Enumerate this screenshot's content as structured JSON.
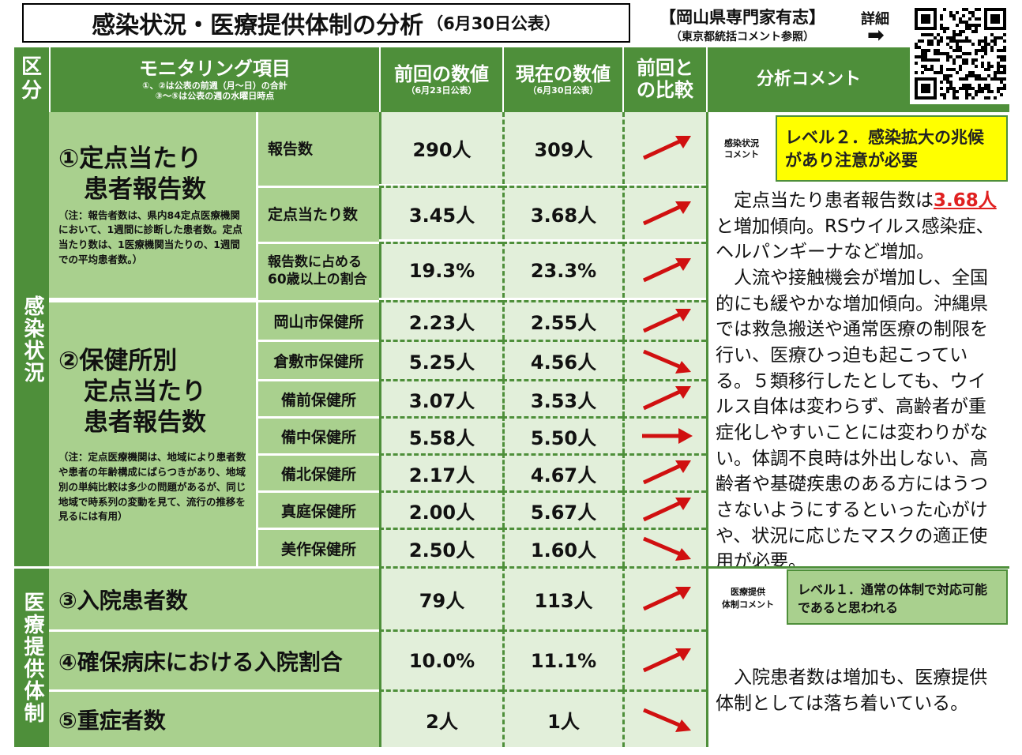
{
  "title": {
    "main": "感染状況・医療提供体制の分析",
    "date": "（6月30日公表）"
  },
  "expert": {
    "line1": "【岡山県専門家有志】",
    "line2": "（東京都統括コメント参照）",
    "detail": "詳細",
    "arrow": "➡"
  },
  "header": {
    "category_1": "区",
    "category_2": "分",
    "item": "モニタリング項目",
    "item_note1": "①、②は公表の前週（月～日）の合計",
    "item_note2": "③～⑤は公表の週の水曜日時点",
    "prev": "前回の数値",
    "prev_date": "（6月23日公表）",
    "curr": "現在の数値",
    "curr_date": "（6月30日公表）",
    "compare_1": "前回と",
    "compare_2": "の比較",
    "comment": "分析コメント"
  },
  "sections": {
    "infection": "感染状況",
    "medical": "医療提供体制"
  },
  "item1": {
    "title_1": "①定点当たり",
    "title_2": "患者報告数",
    "note": "（注：報告者数は、県内84定点医療機関において、1週間に診断した患者数。定点当たり数は、1医療機関当たりの、1週間での平均患者数。）"
  },
  "item2": {
    "title_1": "②保健所別",
    "title_2": "定点当たり",
    "title_3": "患者報告数",
    "note": "（注：定点医療機関は、地域により患者数や患者の年齢構成にばらつきがあり、地域別の単純比較は多少の問題があるが、同じ地域で時系列の変動を見て、流行の推移を見るには有用）"
  },
  "rows": [
    {
      "label": "報告数",
      "prev": "290人",
      "curr": "309人",
      "trend": "up"
    },
    {
      "label": "定点当たり数",
      "prev": "3.45人",
      "curr": "3.68人",
      "trend": "up"
    },
    {
      "label": "報告数に占める60歳以上の割合",
      "label_1": "報告数に占める",
      "label_2": "60歳以上の割合",
      "prev": "19.3%",
      "curr": "23.3%",
      "trend": "up"
    },
    {
      "label": "岡山市保健所",
      "prev": "2.23人",
      "curr": "2.55人",
      "trend": "up"
    },
    {
      "label": "倉敷市保健所",
      "prev": "5.25人",
      "curr": "4.56人",
      "trend": "down"
    },
    {
      "label": "備前保健所",
      "prev": "3.07人",
      "curr": "3.53人",
      "trend": "up"
    },
    {
      "label": "備中保健所",
      "prev": "5.58人",
      "curr": "5.50人",
      "trend": "flat"
    },
    {
      "label": "備北保健所",
      "prev": "2.17人",
      "curr": "4.67人",
      "trend": "up"
    },
    {
      "label": "真庭保健所",
      "prev": "2.00人",
      "curr": "5.67人",
      "trend": "up"
    },
    {
      "label": "美作保健所",
      "prev": "2.50人",
      "curr": "1.60人",
      "trend": "down"
    },
    {
      "label": "③入院患者数",
      "prev": "79人",
      "curr": "113人",
      "trend": "up"
    },
    {
      "label": "④確保病床における入院割合",
      "prev": "10.0%",
      "curr": "11.1%",
      "trend": "up"
    },
    {
      "label": "⑤重症者数",
      "prev": "2人",
      "curr": "1人",
      "trend": "down"
    }
  ],
  "infection_comment": {
    "tag_1": "感染状況",
    "tag_2": "コメント",
    "level": "レベル２．感染拡大の兆候があり注意が必要",
    "text_pre": "　定点当たり患者報告数は",
    "text_highlight": "3.68人",
    "text_post": "と増加傾向。RSウイルス感染症、ヘルパンギーナなど増加。\n　人流や接触機会が増加し、全国的にも緩やかな増加傾向。沖縄県では救急搬送や通常医療の制限を行い、医療ひっ迫も起こっている。５類移行したとしても、ウイルス自体は変わらず、高齢者が重症化しやすいことには変わりがない。体調不良時は外出しない、高齢者や基礎疾患のある方にはうつさないようにするといった心がけや、状況に応じたマスクの適正使用が必要。"
  },
  "medical_comment": {
    "tag_1": "医療提供",
    "tag_2": "体制コメント",
    "level": "レベル１．通常の体制で対応可能であると思われる",
    "text": "　入院患者数は増加も、医療提供体制としては落ち着いている。"
  },
  "colors": {
    "dark_green": "#4e8f3a",
    "light_green": "#a9d08e",
    "pale_green": "#e2efda",
    "yellow": "#ffff00",
    "arrow_red": "#d01010"
  }
}
